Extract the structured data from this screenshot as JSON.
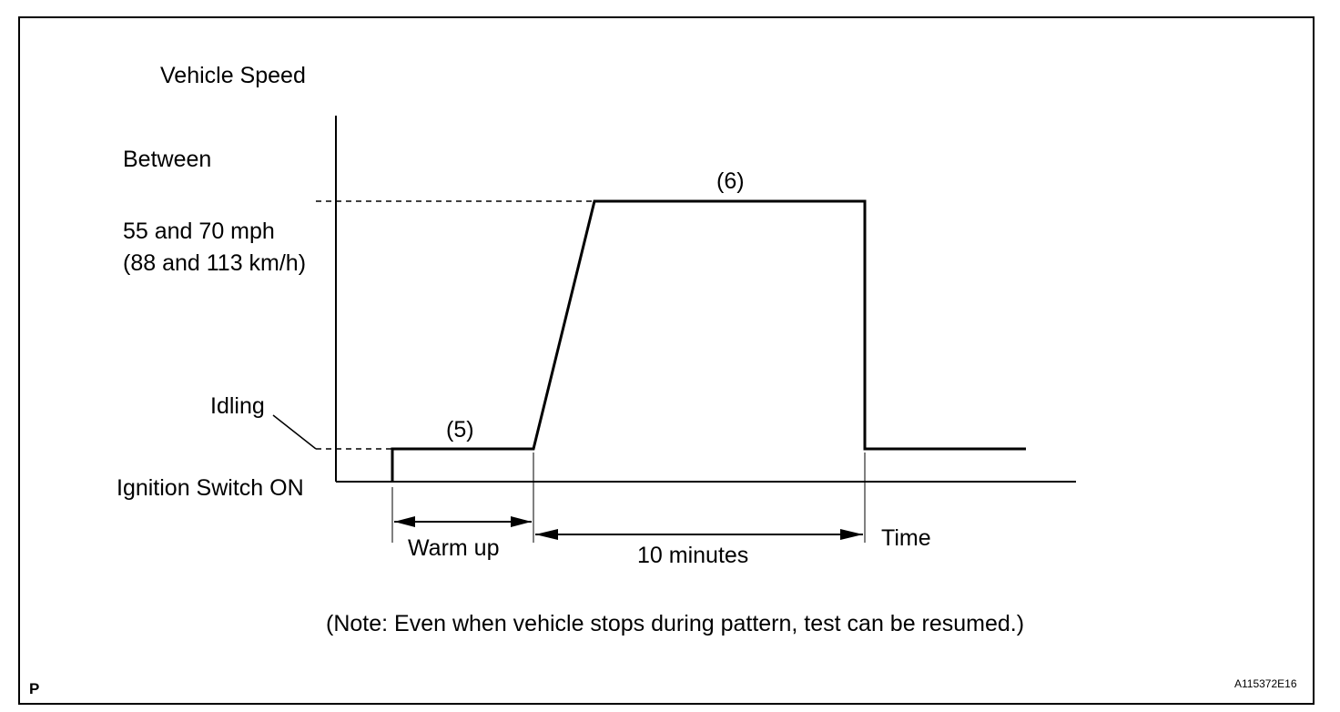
{
  "diagram": {
    "y_axis_title": "Vehicle Speed",
    "speed_label_line1": "Between",
    "speed_label_line2": "55 and 70 mph",
    "speed_label_line3": "(88 and 113 km/h)",
    "idle_label": "Idling",
    "ignition_label": "Ignition Switch ON",
    "step5_label": "(5)",
    "step6_label": "(6)",
    "warmup_label": "Warm up",
    "duration_label": "10 minutes",
    "time_label": "Time",
    "note": "(Note: Even when vehicle stops during pattern, test can be resumed.)"
  },
  "corner_mark": "P",
  "figure_code": "A115372E16",
  "colors": {
    "line": "#000000",
    "background": "#ffffff"
  }
}
